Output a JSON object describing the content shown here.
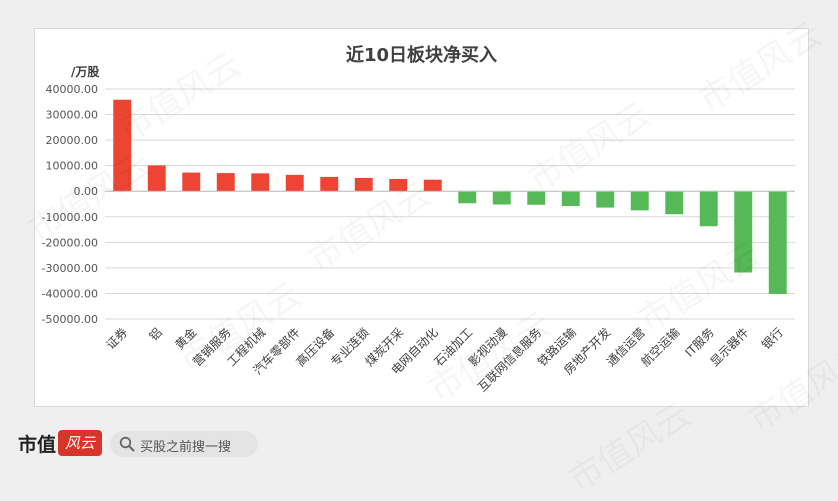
{
  "chart_data": {
    "type": "bar",
    "title": "近10日板块净买入",
    "ylabel": "/万股",
    "ylim": [
      -50000,
      40000
    ],
    "yticks": [
      "40000.00",
      "30000.00",
      "20000.00",
      "10000.00",
      "0.00",
      "-10000.00",
      "-20000.00",
      "-30000.00",
      "-40000.00",
      "-50000.00"
    ],
    "categories": [
      "证券",
      "铝",
      "黄金",
      "营销服务",
      "工程机械",
      "汽车零部件",
      "高压设备",
      "专业连锁",
      "煤炭开采",
      "电网自动化",
      "石油加工",
      "影视动漫",
      "互联网信息服务",
      "铁路运输",
      "房地产开发",
      "通信运营",
      "航空运输",
      "IT服务",
      "显示器件",
      "银行"
    ],
    "values": [
      35800,
      10100,
      7300,
      7100,
      7000,
      6400,
      5600,
      5200,
      4800,
      4500,
      -4700,
      -5200,
      -5300,
      -5800,
      -6400,
      -7500,
      -9000,
      -13700,
      -31800,
      -40200
    ],
    "colors": {
      "positive": "#ee4433",
      "negative": "#56b957"
    },
    "grid": true,
    "legend": "none"
  },
  "footer": {
    "logo_text": "市值",
    "logo_badge": "风云",
    "search_placeholder": "买股之前搜一搜",
    "search_icon": "search-icon"
  },
  "watermark": "市值风云"
}
